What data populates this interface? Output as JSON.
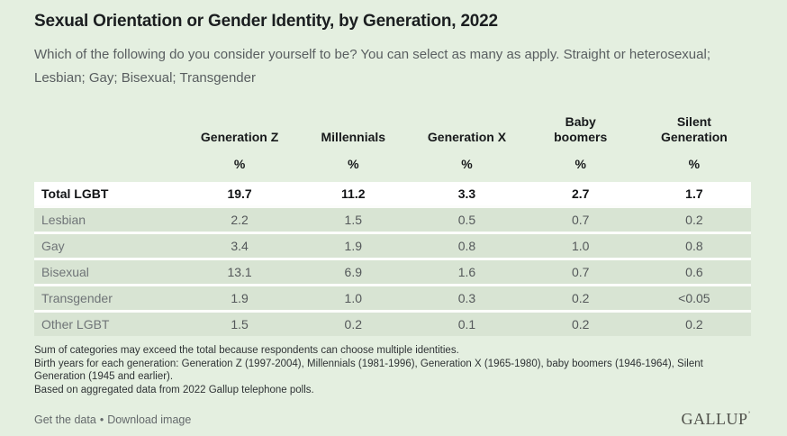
{
  "page": {
    "title": "Sexual Orientation or Gender Identity, by Generation, 2022",
    "subtitle": "Which of the following do you consider yourself to be? You can select as many as apply. Straight or heterosexual; Lesbian; Gay; Bisexual; Transgender"
  },
  "chart_data": {
    "type": "table",
    "title": "Sexual Orientation or Gender Identity, by Generation, 2022",
    "subtitle": "Which of the following do you consider yourself to be? You can select as many as apply. Straight or heterosexual; Lesbian; Gay; Bisexual; Transgender",
    "columns": [
      "Generation Z",
      "Millennials",
      "Generation X",
      "Baby boomers",
      "Silent Generation"
    ],
    "columns_display": [
      "Generation Z",
      "Millennials",
      "Generation X",
      "Baby\nboomers",
      "Silent\nGeneration"
    ],
    "unit": "%",
    "units_row": [
      "%",
      "%",
      "%",
      "%",
      "%"
    ],
    "rows": [
      {
        "label": "Total LGBT",
        "emphasis": true,
        "values": [
          "19.7",
          "11.2",
          "3.3",
          "2.7",
          "1.7"
        ]
      },
      {
        "label": "Lesbian",
        "emphasis": false,
        "values": [
          "2.2",
          "1.5",
          "0.5",
          "0.7",
          "0.2"
        ]
      },
      {
        "label": "Gay",
        "emphasis": false,
        "values": [
          "3.4",
          "1.9",
          "0.8",
          "1.0",
          "0.8"
        ]
      },
      {
        "label": "Bisexual",
        "emphasis": false,
        "values": [
          "13.1",
          "6.9",
          "1.6",
          "0.7",
          "0.6"
        ]
      },
      {
        "label": "Transgender",
        "emphasis": false,
        "values": [
          "1.9",
          "1.0",
          "0.3",
          "0.2",
          "<0.05"
        ]
      },
      {
        "label": "Other LGBT",
        "emphasis": false,
        "values": [
          "1.5",
          "0.2",
          "0.1",
          "0.2",
          "0.2"
        ]
      }
    ],
    "footnotes": [
      "Sum of categories may exceed the total because respondents can choose multiple identities.",
      "Birth years for each generation: Generation Z (1997-2004), Millennials (1981-1996), Generation X (1965-1980), baby boomers (1946-1964), Silent Generation (1945 and earlier).",
      "Based on aggregated data from 2022 Gallup telephone polls."
    ]
  },
  "footer": {
    "links": {
      "get_data": "Get the data",
      "download_image": "Download image"
    },
    "separator": "•",
    "logo_text": "GALLUP",
    "logo_mark": "’"
  },
  "colors": {
    "background": "#e4efe0",
    "row_band": "#d8e4d3",
    "total_row_background": "#ffffff",
    "separator_line": "#fcfdfb",
    "title_text": "#1b1e20",
    "body_text": "#595e60",
    "value_text": "#54585a",
    "label_text": "#6f7477",
    "footnote_text": "#2f3335",
    "logo_text": "#4e4f49"
  }
}
